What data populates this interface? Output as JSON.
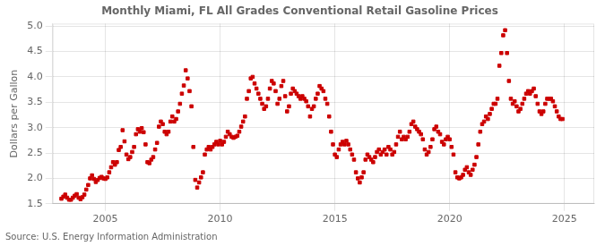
{
  "chart_data": {
    "type": "scatter",
    "title": "Monthly Miami, FL All Grades Conventional Retail Gasoline Prices",
    "y_label": "Dollars per Gallon",
    "annotations": [
      "Source: U.S. Energy Information Administration"
    ],
    "color": "#cc0000",
    "marker": "square",
    "grid": true,
    "xlim": [
      2002.7,
      2026.3
    ],
    "ylim": [
      1.5,
      5.05
    ],
    "xticks": [
      2005,
      2010,
      2015,
      2020,
      2025
    ],
    "yticks": [
      1.5,
      {
        "value": 2.0,
        "label": "2.0"
      },
      2.5,
      {
        "value": 3.0,
        "label": "3.0"
      },
      3.5,
      {
        "value": 4.0,
        "label": "4.0"
      },
      4.5,
      {
        "value": 5.0,
        "label": "5.0"
      }
    ],
    "x": [
      2003.083,
      2003.167,
      2003.25,
      2003.333,
      2003.417,
      2003.5,
      2003.583,
      2003.667,
      2003.75,
      2003.833,
      2003.917,
      2004.0,
      2004.083,
      2004.167,
      2004.25,
      2004.333,
      2004.417,
      2004.5,
      2004.583,
      2004.667,
      2004.75,
      2004.833,
      2004.917,
      2005.0,
      2005.083,
      2005.167,
      2005.25,
      2005.333,
      2005.417,
      2005.5,
      2005.583,
      2005.667,
      2005.75,
      2005.833,
      2005.917,
      2006.0,
      2006.083,
      2006.167,
      2006.25,
      2006.333,
      2006.417,
      2006.5,
      2006.583,
      2006.667,
      2006.75,
      2006.833,
      2006.917,
      2007.0,
      2007.083,
      2007.167,
      2007.25,
      2007.333,
      2007.417,
      2007.5,
      2007.583,
      2007.667,
      2007.75,
      2007.833,
      2007.917,
      2008.0,
      2008.083,
      2008.167,
      2008.25,
      2008.333,
      2008.417,
      2008.5,
      2008.583,
      2008.667,
      2008.75,
      2008.833,
      2008.917,
      2009.0,
      2009.083,
      2009.167,
      2009.25,
      2009.333,
      2009.417,
      2009.5,
      2009.583,
      2009.667,
      2009.75,
      2009.833,
      2009.917,
      2010.0,
      2010.083,
      2010.167,
      2010.25,
      2010.333,
      2010.417,
      2010.5,
      2010.583,
      2010.667,
      2010.75,
      2010.833,
      2010.917,
      2011.0,
      2011.083,
      2011.167,
      2011.25,
      2011.333,
      2011.417,
      2011.5,
      2011.583,
      2011.667,
      2011.75,
      2011.833,
      2011.917,
      2012.0,
      2012.083,
      2012.167,
      2012.25,
      2012.333,
      2012.417,
      2012.5,
      2012.583,
      2012.667,
      2012.75,
      2012.833,
      2012.917,
      2013.0,
      2013.083,
      2013.167,
      2013.25,
      2013.333,
      2013.417,
      2013.5,
      2013.583,
      2013.667,
      2013.75,
      2013.833,
      2013.917,
      2014.0,
      2014.083,
      2014.167,
      2014.25,
      2014.333,
      2014.417,
      2014.5,
      2014.583,
      2014.667,
      2014.75,
      2014.833,
      2014.917,
      2015.0,
      2015.083,
      2015.167,
      2015.25,
      2015.333,
      2015.417,
      2015.5,
      2015.583,
      2015.667,
      2015.75,
      2015.833,
      2015.917,
      2016.0,
      2016.083,
      2016.167,
      2016.25,
      2016.333,
      2016.417,
      2016.5,
      2016.583,
      2016.667,
      2016.75,
      2016.833,
      2016.917,
      2017.0,
      2017.083,
      2017.167,
      2017.25,
      2017.333,
      2017.417,
      2017.5,
      2017.583,
      2017.667,
      2017.75,
      2017.833,
      2017.917,
      2018.0,
      2018.083,
      2018.167,
      2018.25,
      2018.333,
      2018.417,
      2018.5,
      2018.583,
      2018.667,
      2018.75,
      2018.833,
      2018.917,
      2019.0,
      2019.083,
      2019.167,
      2019.25,
      2019.333,
      2019.417,
      2019.5,
      2019.583,
      2019.667,
      2019.75,
      2019.833,
      2019.917,
      2020.0,
      2020.083,
      2020.167,
      2020.25,
      2020.333,
      2020.417,
      2020.5,
      2020.583,
      2020.667,
      2020.75,
      2020.833,
      2020.917,
      2021.0,
      2021.083,
      2021.167,
      2021.25,
      2021.333,
      2021.417,
      2021.5,
      2021.583,
      2021.667,
      2021.75,
      2021.833,
      2021.917,
      2022.0,
      2022.083,
      2022.167,
      2022.25,
      2022.333,
      2022.417,
      2022.5,
      2022.583,
      2022.667,
      2022.75,
      2022.833,
      2022.917,
      2023.0,
      2023.083,
      2023.167,
      2023.25,
      2023.333,
      2023.417,
      2023.5,
      2023.583,
      2023.667,
      2023.75,
      2023.833,
      2023.917,
      2024.0,
      2024.083,
      2024.167,
      2024.25,
      2024.333,
      2024.417,
      2024.5,
      2024.583,
      2024.667,
      2024.75,
      2024.833,
      2024.917
    ],
    "values": [
      1.6,
      1.64,
      1.68,
      1.62,
      1.58,
      1.58,
      1.62,
      1.66,
      1.69,
      1.62,
      1.59,
      1.63,
      1.68,
      1.78,
      1.87,
      2.0,
      2.06,
      1.99,
      1.93,
      1.97,
      2.01,
      2.03,
      2.0,
      1.99,
      2.02,
      2.12,
      2.22,
      2.32,
      2.27,
      2.32,
      2.56,
      2.62,
      2.95,
      2.73,
      2.47,
      2.38,
      2.42,
      2.52,
      2.62,
      2.87,
      2.97,
      2.92,
      2.99,
      2.91,
      2.67,
      2.32,
      2.3,
      2.37,
      2.42,
      2.57,
      2.7,
      3.02,
      3.12,
      3.07,
      2.92,
      2.87,
      2.92,
      3.12,
      3.22,
      3.12,
      3.17,
      3.32,
      3.47,
      3.67,
      3.83,
      4.13,
      3.97,
      3.72,
      3.42,
      2.62,
      1.97,
      1.82,
      1.92,
      2.02,
      2.12,
      2.47,
      2.57,
      2.62,
      2.57,
      2.62,
      2.67,
      2.72,
      2.67,
      2.74,
      2.67,
      2.72,
      2.82,
      2.92,
      2.87,
      2.82,
      2.8,
      2.82,
      2.84,
      2.92,
      3.02,
      3.12,
      3.22,
      3.57,
      3.72,
      3.97,
      4.0,
      3.87,
      3.77,
      3.67,
      3.57,
      3.47,
      3.37,
      3.42,
      3.57,
      3.77,
      3.92,
      3.87,
      3.72,
      3.47,
      3.57,
      3.82,
      3.92,
      3.62,
      3.32,
      3.42,
      3.67,
      3.77,
      3.72,
      3.67,
      3.62,
      3.57,
      3.62,
      3.57,
      3.52,
      3.42,
      3.22,
      3.37,
      3.42,
      3.57,
      3.67,
      3.82,
      3.77,
      3.72,
      3.57,
      3.47,
      3.22,
      2.92,
      2.67,
      2.47,
      2.42,
      2.57,
      2.67,
      2.72,
      2.67,
      2.74,
      2.67,
      2.57,
      2.47,
      2.37,
      2.12,
      2.0,
      1.92,
      2.02,
      2.12,
      2.37,
      2.47,
      2.42,
      2.37,
      2.32,
      2.42,
      2.52,
      2.57,
      2.47,
      2.52,
      2.57,
      2.47,
      2.62,
      2.57,
      2.47,
      2.52,
      2.67,
      2.82,
      2.92,
      2.77,
      2.82,
      2.77,
      2.82,
      2.92,
      3.07,
      3.12,
      3.02,
      2.97,
      2.92,
      2.87,
      2.77,
      2.57,
      2.47,
      2.52,
      2.62,
      2.77,
      2.97,
      3.02,
      2.92,
      2.87,
      2.72,
      2.67,
      2.77,
      2.82,
      2.77,
      2.62,
      2.47,
      2.12,
      2.02,
      2.0,
      2.02,
      2.07,
      2.17,
      2.22,
      2.12,
      2.07,
      2.17,
      2.27,
      2.42,
      2.67,
      2.92,
      3.07,
      3.12,
      3.22,
      3.17,
      3.27,
      3.37,
      3.47,
      3.47,
      3.57,
      4.22,
      4.47,
      4.82,
      4.92,
      4.47,
      3.92,
      3.57,
      3.47,
      3.52,
      3.42,
      3.32,
      3.37,
      3.47,
      3.57,
      3.67,
      3.72,
      3.67,
      3.72,
      3.77,
      3.62,
      3.47,
      3.32,
      3.27,
      3.32,
      3.47,
      3.57,
      3.57,
      3.57,
      3.52,
      3.42,
      3.32,
      3.22,
      3.17,
      3.17
    ]
  }
}
